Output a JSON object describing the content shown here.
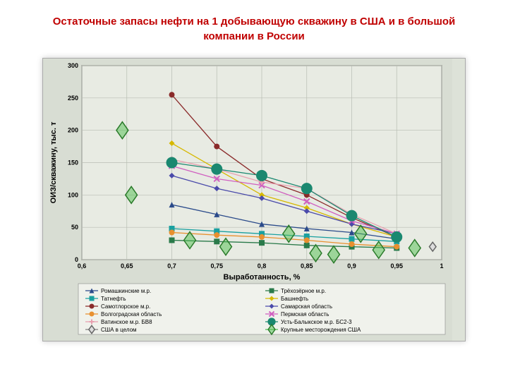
{
  "title": "Остаточные запасы нефти на 1 добывающую скважину в США и в большой компании в России",
  "title_color": "#c00000",
  "title_fontsize": 15,
  "chart": {
    "type": "scatter-line",
    "xlabel": "Выработанность, %",
    "ylabel": "ОИЗ/скважину, тыс. т",
    "label_fontsize": 11,
    "xlim": [
      0.6,
      1.0
    ],
    "ylim": [
      0,
      300
    ],
    "xticks": [
      0.6,
      0.65,
      0.7,
      0.75,
      0.8,
      0.85,
      0.9,
      0.95,
      1.0
    ],
    "yticks": [
      0,
      50,
      100,
      150,
      200,
      250,
      300
    ],
    "background_color": "#d8ddd3",
    "plot_bg_color": "#e8ebe3",
    "grid_color": "#b8bdb3",
    "axis_color": "#333333",
    "tick_fontsize": 9,
    "series": [
      {
        "name": "Ромашкинские м.р.",
        "color": "#2a4a8a",
        "marker": "triangle",
        "line": true,
        "points": [
          [
            0.7,
            85
          ],
          [
            0.75,
            70
          ],
          [
            0.8,
            55
          ],
          [
            0.85,
            48
          ],
          [
            0.9,
            42
          ],
          [
            0.95,
            32
          ]
        ]
      },
      {
        "name": "Трёхозёрное м.р.",
        "color": "#2a7a4a",
        "marker": "square-dash",
        "line": true,
        "points": [
          [
            0.7,
            30
          ],
          [
            0.75,
            28
          ],
          [
            0.8,
            26
          ],
          [
            0.85,
            22
          ],
          [
            0.9,
            20
          ],
          [
            0.95,
            18
          ]
        ]
      },
      {
        "name": "Татнефть",
        "color": "#1aa0a0",
        "marker": "square",
        "line": true,
        "points": [
          [
            0.7,
            48
          ],
          [
            0.75,
            44
          ],
          [
            0.8,
            40
          ],
          [
            0.85,
            36
          ],
          [
            0.9,
            32
          ],
          [
            0.95,
            28
          ]
        ]
      },
      {
        "name": "Башнефть",
        "color": "#d6b800",
        "marker": "diamond",
        "line": true,
        "points": [
          [
            0.7,
            180
          ],
          [
            0.75,
            140
          ],
          [
            0.8,
            100
          ],
          [
            0.85,
            80
          ],
          [
            0.9,
            55
          ],
          [
            0.95,
            35
          ]
        ]
      },
      {
        "name": "Самотлорское м.р.",
        "color": "#8a2a2a",
        "marker": "circle",
        "line": true,
        "points": [
          [
            0.7,
            255
          ],
          [
            0.75,
            175
          ],
          [
            0.8,
            125
          ],
          [
            0.85,
            100
          ],
          [
            0.9,
            65
          ],
          [
            0.95,
            35
          ]
        ]
      },
      {
        "name": "Самарская область",
        "color": "#4a4aaa",
        "marker": "diamond-small",
        "line": true,
        "points": [
          [
            0.7,
            130
          ],
          [
            0.75,
            110
          ],
          [
            0.8,
            95
          ],
          [
            0.85,
            75
          ],
          [
            0.9,
            55
          ],
          [
            0.95,
            40
          ]
        ]
      },
      {
        "name": "Волгоградская область",
        "color": "#e89030",
        "marker": "circle-small",
        "line": true,
        "points": [
          [
            0.7,
            42
          ],
          [
            0.75,
            38
          ],
          [
            0.8,
            35
          ],
          [
            0.85,
            30
          ],
          [
            0.9,
            24
          ],
          [
            0.95,
            20
          ]
        ]
      },
      {
        "name": "Пермская область",
        "color": "#d060c0",
        "marker": "x",
        "line": true,
        "points": [
          [
            0.7,
            145
          ],
          [
            0.75,
            125
          ],
          [
            0.8,
            115
          ],
          [
            0.85,
            90
          ],
          [
            0.9,
            60
          ],
          [
            0.95,
            40
          ]
        ]
      },
      {
        "name": "Ватинское м.р. БВ8",
        "color": "#e8a0b0",
        "marker": "plus",
        "line": true,
        "points": [
          [
            0.7,
            155
          ],
          [
            0.75,
            140
          ],
          [
            0.8,
            120
          ],
          [
            0.85,
            110
          ],
          [
            0.9,
            70
          ],
          [
            0.95,
            40
          ]
        ]
      },
      {
        "name": "Усть-Балыкское м.р. БС2-3",
        "color": "#1a8870",
        "marker": "big-circle",
        "line": true,
        "points": [
          [
            0.7,
            150
          ],
          [
            0.75,
            140
          ],
          [
            0.8,
            130
          ],
          [
            0.85,
            110
          ],
          [
            0.9,
            68
          ],
          [
            0.95,
            35
          ]
        ]
      },
      {
        "name": "США в целом",
        "color": "#808080",
        "marker": "diamond-open-gray",
        "line": false,
        "points": [
          [
            0.99,
            20
          ]
        ]
      },
      {
        "name": "Крупные месторождения США",
        "color": "#50c050",
        "marker": "diamond-open",
        "line": false,
        "points": [
          [
            0.645,
            200
          ],
          [
            0.655,
            100
          ],
          [
            0.72,
            30
          ],
          [
            0.76,
            20
          ],
          [
            0.83,
            40
          ],
          [
            0.86,
            10
          ],
          [
            0.88,
            8
          ],
          [
            0.91,
            40
          ],
          [
            0.93,
            15
          ],
          [
            0.97,
            18
          ]
        ]
      }
    ],
    "legend_cols": 2,
    "legend_fontsize": 8
  }
}
